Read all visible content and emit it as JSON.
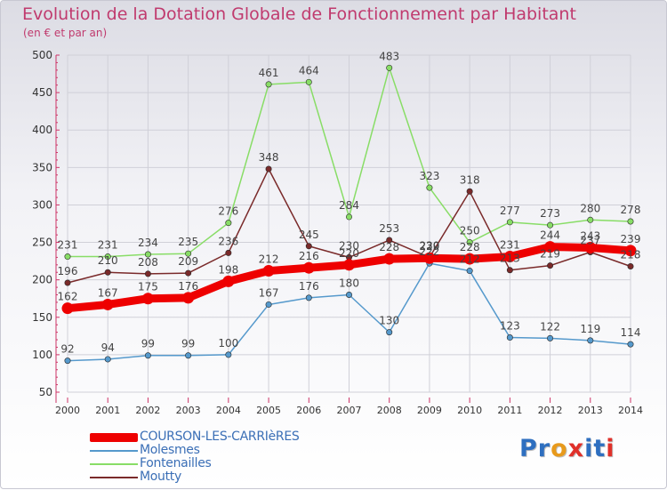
{
  "header": {
    "title": "Evolution de la Dotation Globale de Fonctionnement par Habitant",
    "subtitle": "(en € et par an)"
  },
  "logo": {
    "text": "Proxiti",
    "colors": [
      "#2e6fc0",
      "#2e6fc0",
      "#e89a1c",
      "#e0302a",
      "#2e6fc0",
      "#2e6fc0",
      "#e0302a"
    ]
  },
  "chart_data": {
    "type": "line",
    "title": "Evolution de la Dotation Globale de Fonctionnement par Habitant",
    "subtitle": "(en € et par an)",
    "xlabel": "",
    "ylabel": "",
    "ylim": [
      50,
      500
    ],
    "yticks": [
      50,
      100,
      150,
      200,
      250,
      300,
      350,
      400,
      450,
      500
    ],
    "x": [
      "2000",
      "2001",
      "2002",
      "2003",
      "2004",
      "2005",
      "2006",
      "2007",
      "2008",
      "2009",
      "2010",
      "2011",
      "2012",
      "2013",
      "2014"
    ],
    "grid": true,
    "legend_position": "bottom-left",
    "series": [
      {
        "name": "COURSON-LES-CARRIèRES",
        "color": "#ee0000",
        "width": "thick",
        "values": [
          162,
          167,
          175,
          176,
          198,
          212,
          216,
          220,
          228,
          229,
          228,
          231,
          244,
          243,
          239
        ],
        "labels": [
          "162",
          "167",
          "175",
          "176",
          "198",
          "212",
          "216",
          "220",
          "228",
          "229",
          "228",
          "231",
          "244",
          "243",
          "239"
        ]
      },
      {
        "name": "Molesmes",
        "color": "#5599cc",
        "width": "thin",
        "values": [
          92,
          94,
          99,
          99,
          100,
          167,
          176,
          180,
          130,
          222,
          212,
          123,
          122,
          119,
          114
        ],
        "labels": [
          "92",
          "94",
          "99",
          "99",
          "100",
          "167",
          "176",
          "180",
          "130",
          "222",
          "212",
          "123",
          "122",
          "119",
          "114"
        ]
      },
      {
        "name": "Fontenailles",
        "color": "#88dd66",
        "width": "thin",
        "values": [
          231,
          231,
          234,
          235,
          276,
          461,
          464,
          284,
          483,
          323,
          250,
          277,
          273,
          280,
          278
        ],
        "labels": [
          "231",
          "231",
          "234",
          "235",
          "276",
          "461",
          "464",
          "284",
          "483",
          "323",
          "250",
          "277",
          "273",
          "280",
          "278"
        ]
      },
      {
        "name": "Moutty",
        "color": "#7a2a2a",
        "width": "thin",
        "values": [
          196,
          210,
          208,
          209,
          236,
          348,
          245,
          230,
          253,
          230,
          318,
          213,
          219,
          237,
          218
        ],
        "labels": [
          "196",
          "210",
          "208",
          "209",
          "236",
          "348",
          "245",
          "230",
          "253",
          "230",
          "318",
          "213",
          "219",
          "237",
          "218"
        ]
      }
    ]
  }
}
